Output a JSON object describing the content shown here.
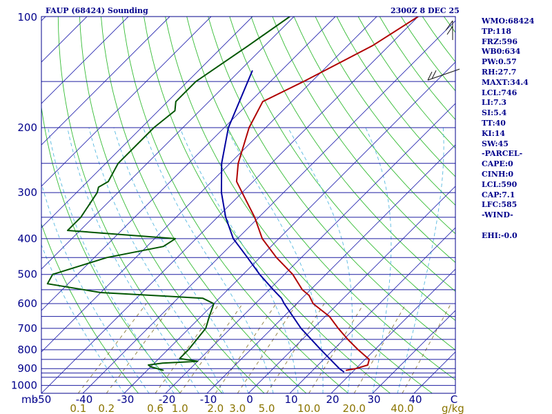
{
  "header": {
    "station_title": "FAUP (68424) Sounding",
    "valid_time": "2300Z  8 DEC 25"
  },
  "indices": [
    "WMO:68424",
    "TP:118",
    "FRZ:596",
    "WB0:634",
    "PW:0.57",
    "RH:27.7",
    "MAXT:34.4",
    "LCL:746",
    "LI:7.3",
    "SI:5.4",
    "TT:40",
    "KI:14",
    "SW:45",
    "-PARCEL-",
    "CAPE:0",
    "CINH:0",
    "LCL:590",
    "CAP:7.1",
    "LFC:585",
    "-WIND-",
    "",
    "EHI:-0.0"
  ],
  "chart_data": {
    "type": "line",
    "diagram": "skew-t log-p",
    "pressure_axis_unit": "mb",
    "mixing_ratio_unit": "g/kg",
    "pressure_labels": [
      100,
      200,
      300,
      400,
      500,
      600,
      700,
      800,
      900,
      1000
    ],
    "isobar_levels": [
      100,
      150,
      200,
      250,
      300,
      350,
      400,
      450,
      500,
      550,
      600,
      650,
      700,
      750,
      800,
      850,
      900,
      925,
      950,
      1000
    ],
    "temperature_labels": [
      -50,
      -40,
      -30,
      -20,
      -10,
      0,
      10,
      20,
      30,
      40
    ],
    "temperature_label_text": [
      "-50",
      "-40",
      "-30",
      "-20",
      "-10",
      "0",
      "10",
      "20",
      "30",
      "40"
    ],
    "corner_label": "C",
    "pressure_range": [
      100,
      1050
    ],
    "temperature_range_at_base": [
      -50,
      50
    ],
    "mixing_ratio_labels": [
      "0.1",
      "0.2",
      "0.6",
      "1.0",
      "2.0",
      "3.0",
      "5.0",
      "10.0",
      "20.0",
      "40.0"
    ],
    "series": [
      {
        "kind": "temperature",
        "color": "#b00000",
        "points": [
          [
            100,
            -50
          ],
          [
            120,
            -54
          ],
          [
            150,
            -62
          ],
          [
            170,
            -67
          ],
          [
            200,
            -64
          ],
          [
            250,
            -58
          ],
          [
            280,
            -54
          ],
          [
            300,
            -50
          ],
          [
            350,
            -41
          ],
          [
            400,
            -34
          ],
          [
            450,
            -26
          ],
          [
            500,
            -18
          ],
          [
            550,
            -12
          ],
          [
            570,
            -9
          ],
          [
            600,
            -6
          ],
          [
            650,
            1
          ],
          [
            700,
            6
          ],
          [
            750,
            11
          ],
          [
            800,
            16
          ],
          [
            850,
            21
          ],
          [
            880,
            22
          ],
          [
            900,
            20
          ],
          [
            910,
            18
          ]
        ]
      },
      {
        "kind": "dewpoint",
        "color": "#005500",
        "points": [
          [
            100,
            -81
          ],
          [
            120,
            -84
          ],
          [
            150,
            -88
          ],
          [
            170,
            -88
          ],
          [
            180,
            -86
          ],
          [
            200,
            -87
          ],
          [
            250,
            -87
          ],
          [
            280,
            -85
          ],
          [
            290,
            -86
          ],
          [
            300,
            -85
          ],
          [
            350,
            -83
          ],
          [
            380,
            -83
          ],
          [
            400,
            -55
          ],
          [
            420,
            -56
          ],
          [
            450,
            -67
          ],
          [
            500,
            -76
          ],
          [
            530,
            -75
          ],
          [
            560,
            -60
          ],
          [
            580,
            -34
          ],
          [
            600,
            -30
          ],
          [
            650,
            -28
          ],
          [
            700,
            -26
          ],
          [
            800,
            -25
          ],
          [
            845,
            -25
          ],
          [
            860,
            -20
          ],
          [
            870,
            -28
          ],
          [
            880,
            -31
          ],
          [
            890,
            -30
          ],
          [
            910,
            -26
          ]
        ]
      },
      {
        "kind": "parcel",
        "color": "#0000a0",
        "points": [
          [
            140,
            -77
          ],
          [
            200,
            -69
          ],
          [
            250,
            -62
          ],
          [
            300,
            -55
          ],
          [
            350,
            -48
          ],
          [
            400,
            -41
          ],
          [
            450,
            -33
          ],
          [
            500,
            -26
          ],
          [
            550,
            -19
          ],
          [
            580,
            -15
          ],
          [
            600,
            -13
          ],
          [
            700,
            -3
          ],
          [
            800,
            7
          ],
          [
            900,
            16
          ],
          [
            920,
            18
          ]
        ]
      }
    ],
    "wind_barbs": [
      {
        "pressure": 100,
        "kind": "barb-upper"
      },
      {
        "pressure": 140,
        "kind": "barb-lower"
      }
    ]
  }
}
